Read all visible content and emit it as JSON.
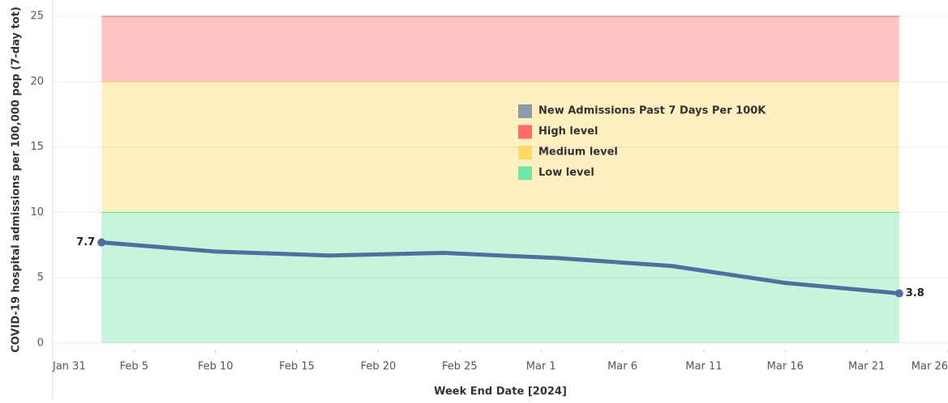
{
  "chart_data": {
    "type": "line",
    "x_label": "Week End Date [2024]",
    "y_label": "COVID-19 hospital admissions per 100,000 pop (7-day tot)",
    "x": [
      "2024-02-03",
      "2024-02-10",
      "2024-02-17",
      "2024-02-24",
      "2024-03-02",
      "2024-03-09",
      "2024-03-16",
      "2024-03-23"
    ],
    "series": [
      {
        "name": "New Admissions Past 7 Days Per 100K",
        "color": "#4e6f9f",
        "values": [
          7.7,
          7.0,
          6.7,
          6.9,
          6.5,
          5.9,
          4.6,
          3.8
        ]
      }
    ],
    "bands": [
      {
        "name": "High level",
        "color": "#ff6b6b",
        "from": 20,
        "to": 25
      },
      {
        "name": "Medium level",
        "color": "#ffd966",
        "from": 10,
        "to": 20
      },
      {
        "name": "Low level",
        "color": "#6ee7a4",
        "from": 0,
        "to": 10
      }
    ],
    "xlim": [
      "2024-01-31",
      "2024-03-26"
    ],
    "xticks": [
      {
        "value": "2024-01-31",
        "label": "Jan 31"
      },
      {
        "value": "2024-02-05",
        "label": "Feb 5"
      },
      {
        "value": "2024-02-10",
        "label": "Feb 10"
      },
      {
        "value": "2024-02-15",
        "label": "Feb 15"
      },
      {
        "value": "2024-02-20",
        "label": "Feb 20"
      },
      {
        "value": "2024-02-25",
        "label": "Feb 25"
      },
      {
        "value": "2024-03-01",
        "label": "Mar 1"
      },
      {
        "value": "2024-03-06",
        "label": "Mar 6"
      },
      {
        "value": "2024-03-11",
        "label": "Mar 11"
      },
      {
        "value": "2024-03-16",
        "label": "Mar 16"
      },
      {
        "value": "2024-03-21",
        "label": "Mar 21"
      },
      {
        "value": "2024-03-26",
        "label": "Mar 26"
      }
    ],
    "ylim": [
      -0.5,
      25.5
    ],
    "yticks": [
      0,
      5,
      10,
      15,
      20,
      25
    ],
    "grid": true
  }
}
